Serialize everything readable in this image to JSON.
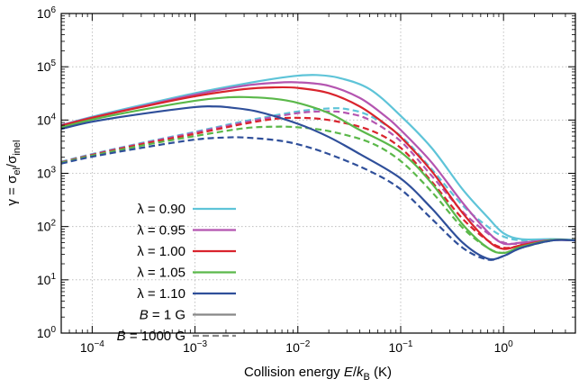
{
  "chart_data": {
    "type": "line",
    "xlabel": "Collision energy E/kB (K)",
    "ylabel": "γ = σel/σinel",
    "x_scale": "log",
    "y_scale": "log",
    "xlim": [
      5e-05,
      5
    ],
    "ylim": [
      1,
      1000000
    ],
    "grid": true,
    "legend_position": "bottom-left",
    "x_ticks": [
      {
        "value": 0.0001,
        "base": "10",
        "exp": "−4"
      },
      {
        "value": 0.001,
        "base": "10",
        "exp": "−3"
      },
      {
        "value": 0.01,
        "base": "10",
        "exp": "−2"
      },
      {
        "value": 0.1,
        "base": "10",
        "exp": "−1"
      },
      {
        "value": 1,
        "base": "10",
        "exp": "0"
      }
    ],
    "y_ticks": [
      {
        "value": 1,
        "base": "10",
        "exp": "0"
      },
      {
        "value": 10,
        "base": "10",
        "exp": "1"
      },
      {
        "value": 100,
        "base": "10",
        "exp": "2"
      },
      {
        "value": 1000,
        "base": "10",
        "exp": "3"
      },
      {
        "value": 10000,
        "base": "10",
        "exp": "4"
      },
      {
        "value": 100000,
        "base": "10",
        "exp": "5"
      },
      {
        "value": 1000000,
        "base": "10",
        "exp": "6"
      }
    ],
    "legend": [
      {
        "label": "λ = 0.90",
        "color": "#5ec4d8",
        "dash": "solid"
      },
      {
        "label": "λ = 0.95",
        "color": "#b455b0",
        "dash": "solid"
      },
      {
        "label": "λ = 1.00",
        "color": "#d9242d",
        "dash": "solid"
      },
      {
        "label": "λ = 1.05",
        "color": "#5bb84a",
        "dash": "solid"
      },
      {
        "label": "λ = 1.10",
        "color": "#2f4f9a",
        "dash": "solid"
      },
      {
        "label": "B = 1 G",
        "color": "#888888",
        "dash": "solid"
      },
      {
        "label": "B = 1000 G",
        "color": "#888888",
        "dash": "dashed"
      }
    ],
    "series": [
      {
        "color": "#5ec4d8",
        "dash": "solid",
        "x": [
          5e-05,
          0.0001,
          0.0003,
          0.001,
          0.003,
          0.006,
          0.01,
          0.015,
          0.025,
          0.05,
          0.1,
          0.2,
          0.4,
          0.7,
          1.0,
          1.5,
          3,
          5
        ],
        "y": [
          8000,
          11500,
          19000,
          32000,
          48000,
          60000,
          68000,
          70000,
          62000,
          38000,
          12000,
          3000,
          500,
          150,
          75,
          58,
          58,
          56
        ]
      },
      {
        "color": "#b455b0",
        "dash": "solid",
        "x": [
          5e-05,
          0.0001,
          0.0003,
          0.001,
          0.003,
          0.006,
          0.01,
          0.02,
          0.04,
          0.07,
          0.1,
          0.2,
          0.4,
          0.7,
          1.0,
          1.5,
          3,
          5
        ],
        "y": [
          8000,
          11200,
          18000,
          30000,
          44000,
          50000,
          51000,
          44000,
          26000,
          12000,
          6500,
          1600,
          280,
          80,
          48,
          50,
          56,
          55
        ]
      },
      {
        "color": "#d9242d",
        "dash": "solid",
        "x": [
          5e-05,
          0.0001,
          0.0003,
          0.001,
          0.003,
          0.006,
          0.01,
          0.02,
          0.04,
          0.07,
          0.1,
          0.2,
          0.4,
          0.7,
          1.0,
          1.5,
          3,
          5
        ],
        "y": [
          7800,
          11000,
          17500,
          28000,
          38000,
          41000,
          40000,
          32000,
          18000,
          8500,
          4800,
          1100,
          180,
          55,
          38,
          45,
          56,
          55
        ]
      },
      {
        "color": "#5bb84a",
        "dash": "solid",
        "x": [
          5e-05,
          0.0001,
          0.0003,
          0.001,
          0.002,
          0.003,
          0.006,
          0.01,
          0.02,
          0.04,
          0.1,
          0.2,
          0.4,
          0.7,
          1.0,
          1.5,
          3,
          5
        ],
        "y": [
          7300,
          10200,
          15500,
          23000,
          26500,
          27000,
          25000,
          21000,
          13500,
          6500,
          2500,
          650,
          110,
          40,
          32,
          42,
          56,
          55
        ]
      },
      {
        "color": "#2f4f9a",
        "dash": "solid",
        "x": [
          5e-05,
          0.0001,
          0.0003,
          0.001,
          0.0015,
          0.002,
          0.004,
          0.01,
          0.02,
          0.04,
          0.1,
          0.2,
          0.4,
          0.7,
          1.0,
          1.5,
          3,
          5
        ],
        "y": [
          6800,
          9300,
          13000,
          17500,
          18000,
          17500,
          14500,
          8500,
          4800,
          2300,
          800,
          220,
          50,
          25,
          28,
          40,
          55,
          55
        ]
      },
      {
        "color": "#5ec4d8",
        "dash": "dashed",
        "x": [
          5e-05,
          0.0001,
          0.0003,
          0.001,
          0.003,
          0.01,
          0.02,
          0.03,
          0.05,
          0.1,
          0.2,
          0.4,
          0.7,
          1.0,
          1.5,
          3,
          5
        ],
        "y": [
          1650,
          2300,
          3700,
          6000,
          9500,
          14500,
          16500,
          16000,
          12000,
          5000,
          1200,
          250,
          100,
          65,
          55,
          57,
          55
        ]
      },
      {
        "color": "#b455b0",
        "dash": "dashed",
        "x": [
          5e-05,
          0.0001,
          0.0003,
          0.001,
          0.003,
          0.01,
          0.02,
          0.03,
          0.05,
          0.1,
          0.2,
          0.4,
          0.7,
          1.0,
          1.5,
          3,
          5
        ],
        "y": [
          1620,
          2250,
          3600,
          5800,
          9000,
          13500,
          14500,
          13500,
          10000,
          4000,
          900,
          190,
          75,
          50,
          48,
          56,
          55
        ]
      },
      {
        "color": "#d9242d",
        "dash": "dashed",
        "x": [
          5e-05,
          0.0001,
          0.0003,
          0.001,
          0.003,
          0.006,
          0.01,
          0.02,
          0.05,
          0.1,
          0.2,
          0.4,
          0.7,
          1.0,
          1.5,
          3,
          5
        ],
        "y": [
          1600,
          2200,
          3500,
          5500,
          8500,
          10500,
          11000,
          10000,
          6500,
          3000,
          700,
          140,
          55,
          40,
          44,
          56,
          55
        ]
      },
      {
        "color": "#5bb84a",
        "dash": "dashed",
        "x": [
          5e-05,
          0.0001,
          0.0003,
          0.001,
          0.003,
          0.006,
          0.01,
          0.02,
          0.05,
          0.1,
          0.2,
          0.4,
          0.7,
          1.0,
          1.5,
          3,
          5
        ],
        "y": [
          1580,
          2150,
          3300,
          5000,
          7000,
          7500,
          7300,
          6200,
          3800,
          1700,
          450,
          95,
          40,
          32,
          40,
          55,
          55
        ]
      },
      {
        "color": "#2f4f9a",
        "dash": "dashed",
        "x": [
          5e-05,
          0.0001,
          0.0003,
          0.001,
          0.002,
          0.003,
          0.006,
          0.01,
          0.02,
          0.05,
          0.1,
          0.2,
          0.4,
          0.7,
          1.0,
          1.5,
          3,
          5
        ],
        "y": [
          1520,
          2050,
          3000,
          4300,
          4700,
          4700,
          4200,
          3500,
          2300,
          1100,
          500,
          140,
          40,
          24,
          28,
          40,
          55,
          55
        ]
      }
    ]
  }
}
